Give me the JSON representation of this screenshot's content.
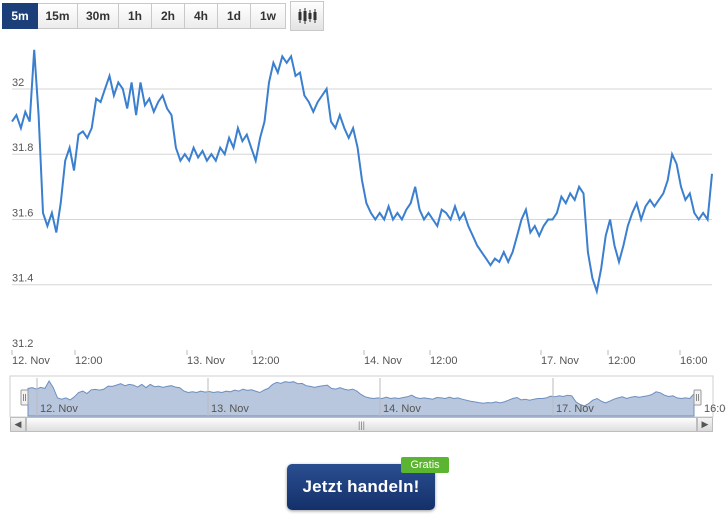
{
  "toolbar": {
    "ranges": [
      "5m",
      "15m",
      "30m",
      "1h",
      "2h",
      "4h",
      "1d",
      "1w"
    ],
    "active": "5m",
    "chart_type_icon": "candlestick-icon"
  },
  "chart_data": {
    "type": "line",
    "title": "",
    "xlabel": "",
    "ylabel": "",
    "y_ticks": [
      "31.2",
      "31.4",
      "31.6",
      "31.8",
      "32"
    ],
    "ylim": [
      31.2,
      32.15
    ],
    "x_ticks": [
      "12. Nov",
      "12:00",
      "13. Nov",
      "12:00",
      "14. Nov",
      "12:00",
      "17. Nov",
      "12:00",
      "16:00"
    ],
    "grid": true,
    "line_color": "#3b7fcf",
    "series": [
      {
        "values": [
          31.9,
          31.92,
          31.88,
          31.93,
          31.9,
          32.12,
          31.92,
          31.62,
          31.58,
          31.62,
          31.56,
          31.65,
          31.78,
          31.82,
          31.75,
          31.86,
          31.87,
          31.85,
          31.88,
          31.97,
          31.96,
          32.0,
          32.04,
          31.98,
          32.02,
          32.0,
          31.94,
          32.02,
          31.92,
          32.02,
          31.95,
          31.97,
          31.93,
          31.96,
          31.98,
          31.94,
          31.92,
          31.82,
          31.78,
          31.8,
          31.78,
          31.82,
          31.79,
          31.81,
          31.78,
          31.8,
          31.78,
          31.82,
          31.8,
          31.85,
          31.82,
          31.88,
          31.84,
          31.86,
          31.82,
          31.78,
          31.85,
          31.9,
          32.02,
          32.08,
          32.05,
          32.1,
          32.08,
          32.1,
          32.04,
          32.05,
          31.98,
          31.96,
          31.93,
          31.96,
          31.98,
          32.0,
          31.9,
          31.88,
          31.92,
          31.88,
          31.85,
          31.88,
          31.82,
          31.72,
          31.65,
          31.62,
          31.6,
          31.62,
          31.6,
          31.64,
          31.6,
          31.62,
          31.6,
          31.63,
          31.65,
          31.7,
          31.63,
          31.6,
          31.62,
          31.6,
          31.58,
          31.63,
          31.62,
          31.6,
          31.64,
          31.6,
          31.62,
          31.58,
          31.55,
          31.52,
          31.5,
          31.48,
          31.46,
          31.48,
          31.47,
          31.5,
          31.47,
          31.5,
          31.55,
          31.6,
          31.63,
          31.56,
          31.58,
          31.55,
          31.58,
          31.6,
          31.6,
          31.62,
          31.67,
          31.65,
          31.68,
          31.66,
          31.7,
          31.68,
          31.5,
          31.42,
          31.38,
          31.45,
          31.55,
          31.6,
          31.52,
          31.47,
          31.52,
          31.58,
          31.62,
          31.65,
          31.6,
          31.64,
          31.66,
          31.64,
          31.66,
          31.68,
          31.72,
          31.8,
          31.77,
          31.7,
          31.66,
          31.68,
          31.62,
          31.6,
          31.62,
          31.6,
          31.74
        ]
      }
    ]
  },
  "navigator": {
    "labels": [
      "12. Nov",
      "13. Nov",
      "14. Nov",
      "17. Nov",
      "16:00"
    ]
  },
  "cta": {
    "label": "Jetzt handeln!",
    "badge": "Gratis"
  }
}
